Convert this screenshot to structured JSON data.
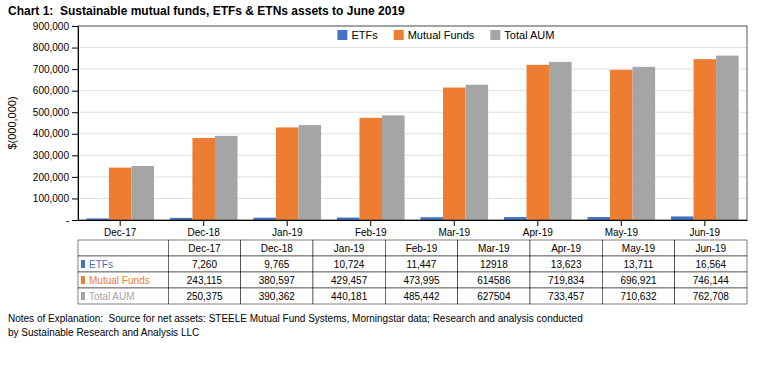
{
  "chart_data": {
    "type": "bar",
    "title": "Chart 1:  Sustainable mutual funds, ETFs & ETNs assets to June 2019",
    "categories": [
      "Dec-17",
      "Dec-18",
      "Jan-19",
      "Feb-19",
      "Mar-19",
      "Apr-19",
      "May-19",
      "Jun-19"
    ],
    "series": [
      {
        "name": "ETFs",
        "color": "#4472c4",
        "values": [
          7260,
          9765,
          10724,
          11447,
          12918,
          13623,
          13711,
          16564
        ],
        "value_labels": [
          "7,260",
          "9,765",
          "10,724",
          "11,447",
          "12918",
          "13,623",
          "13,711",
          "16,564"
        ]
      },
      {
        "name": "Mutual Funds",
        "color": "#ed7d31",
        "values": [
          243115,
          380597,
          429457,
          473995,
          614586,
          719834,
          696921,
          746144
        ],
        "value_labels": [
          "243,115",
          "380,597",
          "429,457",
          "473,995",
          "614586",
          "719,834",
          "696,921",
          "746,144"
        ]
      },
      {
        "name": "Total AUM",
        "color": "#a5a5a5",
        "values": [
          250375,
          390362,
          440181,
          485442,
          627504,
          733457,
          710632,
          762708
        ],
        "value_labels": [
          "250,375",
          "390,362",
          "440,181",
          "485,442",
          "627504",
          "733,457",
          "710,632",
          "762,708"
        ]
      }
    ],
    "ylabel": "$(000,000)",
    "ylim": [
      0,
      900000
    ],
    "yticks": [
      {
        "value": 0,
        "label": "-"
      },
      {
        "value": 100000,
        "label": "100,000"
      },
      {
        "value": 200000,
        "label": "200,000"
      },
      {
        "value": 300000,
        "label": "300,000"
      },
      {
        "value": 400000,
        "label": "400,000"
      },
      {
        "value": 500000,
        "label": "500,000"
      },
      {
        "value": 600000,
        "label": "600,000"
      },
      {
        "value": 700000,
        "label": "700,000"
      },
      {
        "value": 800000,
        "label": "800,000"
      },
      {
        "value": 900000,
        "label": "900,000"
      }
    ],
    "grid": true,
    "legend": "top",
    "annotations": [
      "Notes of Explanation:  Source for net assets: STEELE Mutual Fund Systems, Morningstar data; Research and analysis conducted",
      "by Sustainable Research and Analysis LLC"
    ]
  }
}
